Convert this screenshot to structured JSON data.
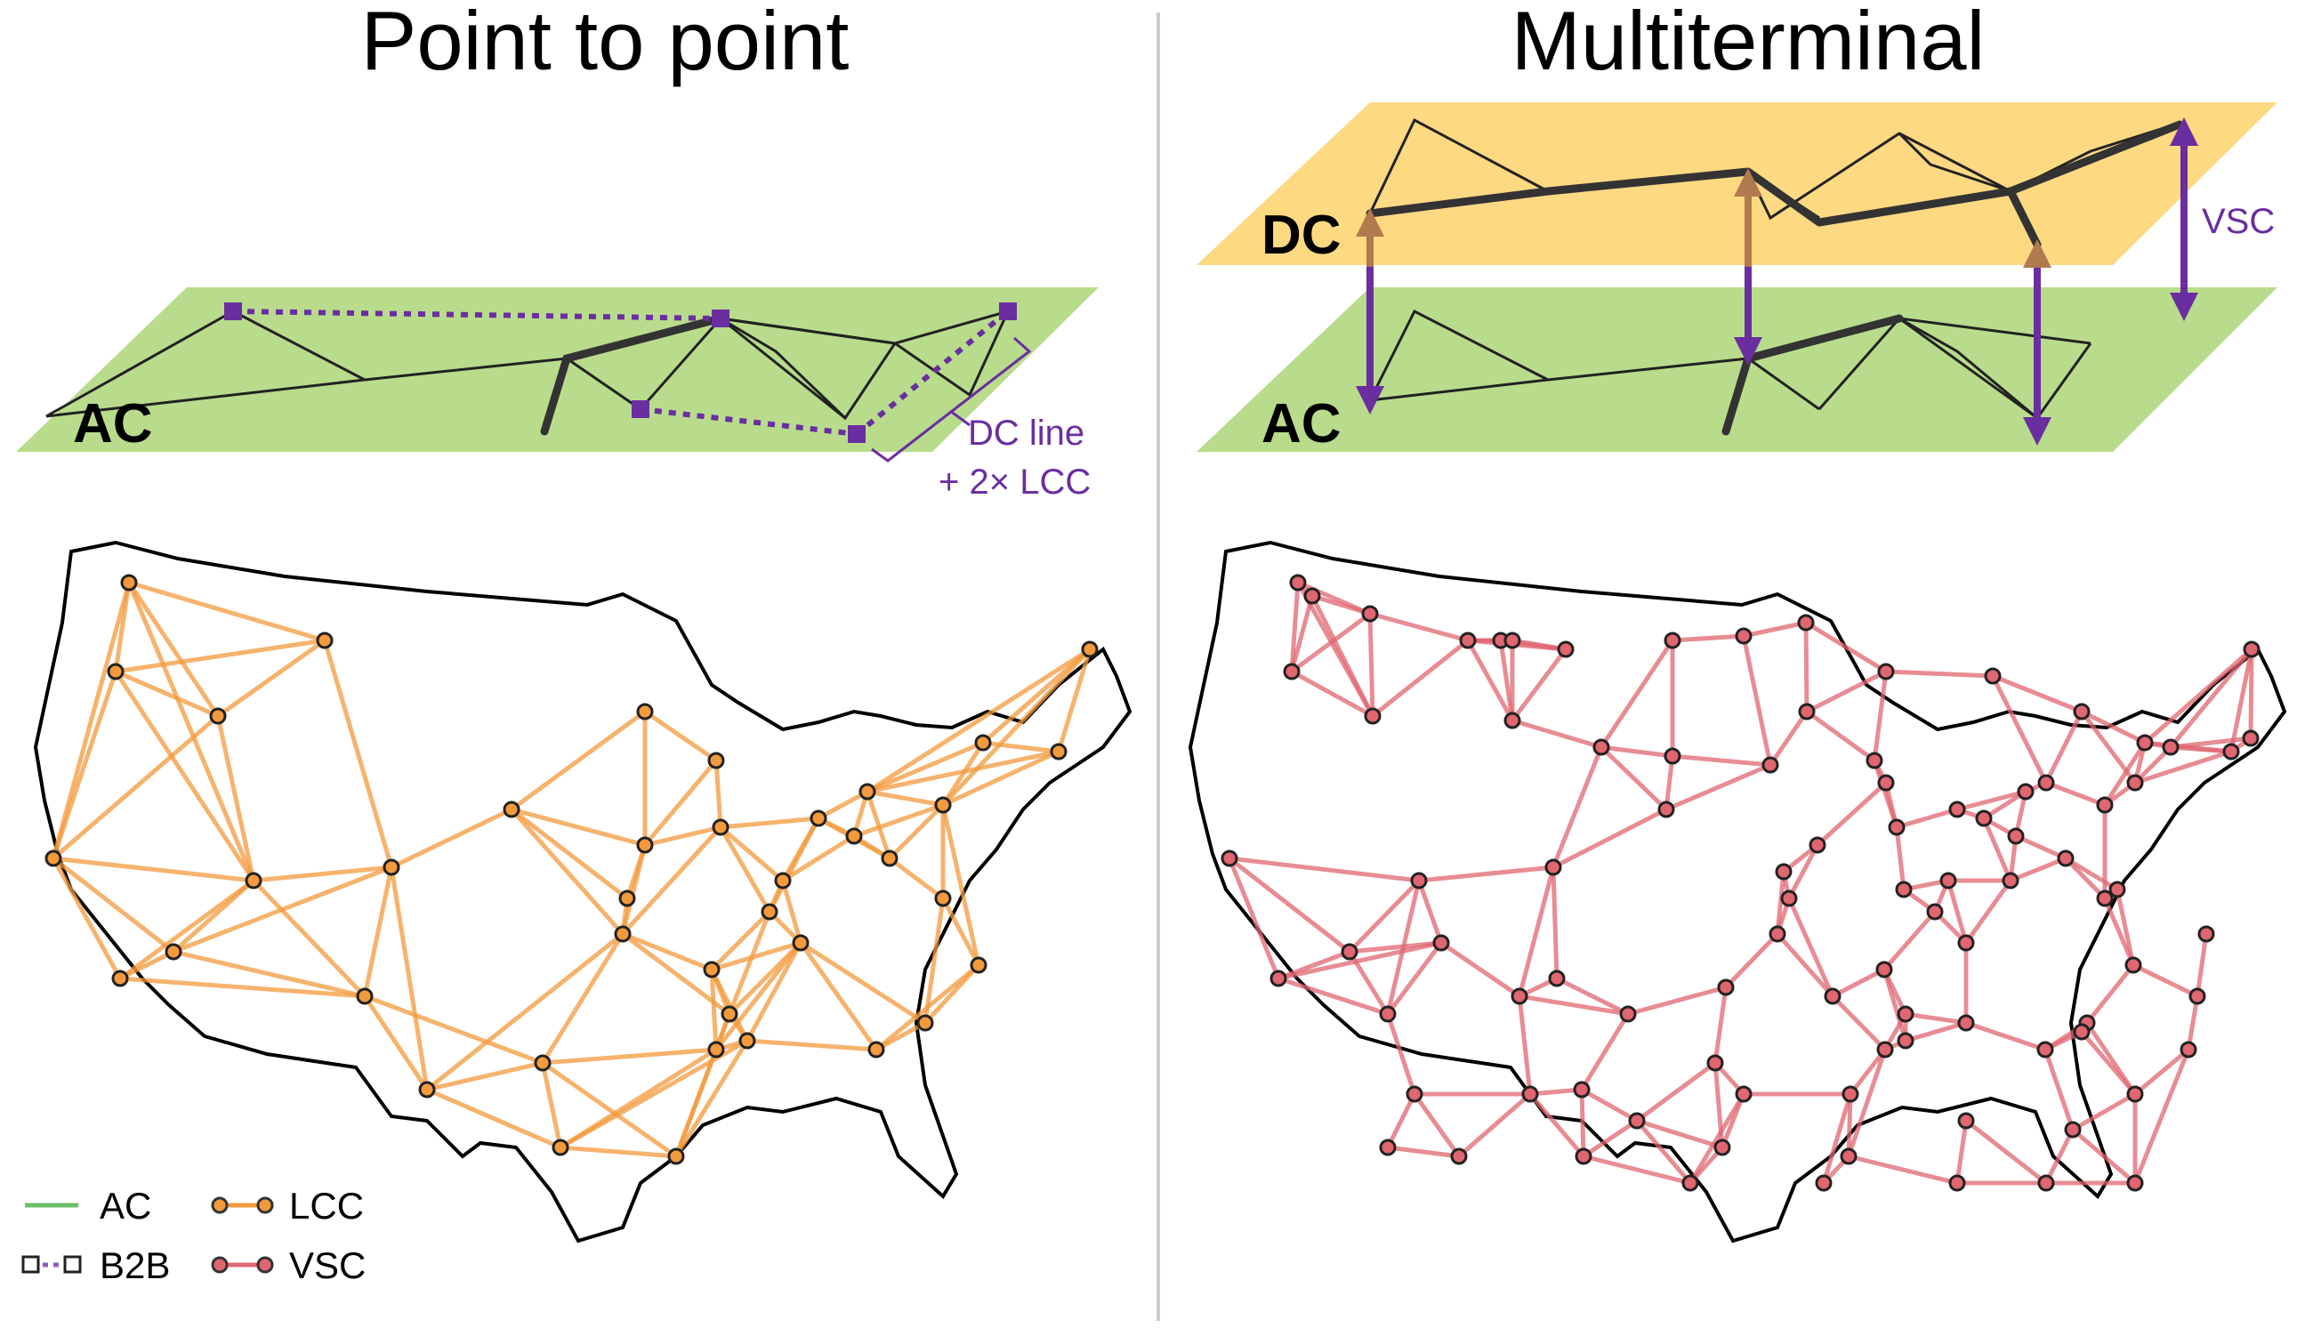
{
  "panels": {
    "left": {
      "title": "Point to point",
      "plane_label": "AC",
      "annotation_line1": "DC line",
      "annotation_line2": "+ 2× LCC"
    },
    "right": {
      "title": "Multiterminal",
      "dc_plane_label": "DC",
      "ac_plane_label": "AC",
      "annotation": "VSC"
    }
  },
  "legend": {
    "items": [
      {
        "label": "AC",
        "color": "#6abf69",
        "style": "solid"
      },
      {
        "label": "LCC",
        "color": "#f39a3c",
        "style": "solid-with-circles"
      },
      {
        "label": "B2B",
        "color": "#8b5cc0",
        "style": "dotted-with-squares"
      },
      {
        "label": "VSC",
        "color": "#e06670",
        "style": "solid-with-circles"
      }
    ]
  },
  "colors": {
    "ac_plane": "#b9dc8c",
    "dc_plane": "#fdd982",
    "lcc": "#f39a3c",
    "b2b": "#8b5cc0",
    "vsc": "#e06670",
    "purple_arrow": "#6a2ea0",
    "brown_arrow": "#b07a4e",
    "divider": "#cccccc"
  }
}
